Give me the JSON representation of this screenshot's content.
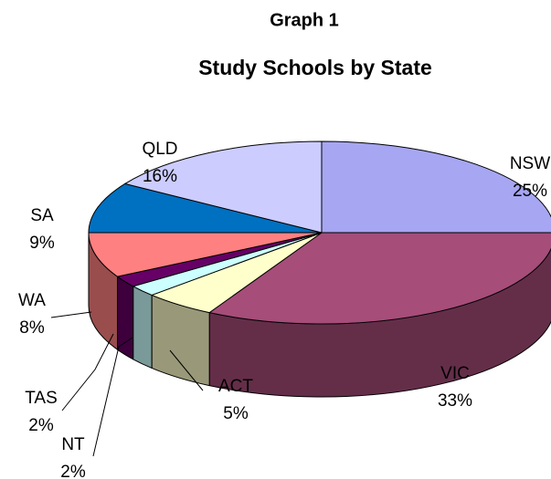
{
  "chart_data": {
    "type": "pie3d",
    "title": "Graph 1",
    "subtitle": "Study Schools by State",
    "categories": [
      "NSW",
      "VIC",
      "ACT",
      "NT",
      "TAS",
      "WA",
      "SA",
      "QLD"
    ],
    "values": [
      25,
      33,
      5,
      2,
      2,
      8,
      9,
      16
    ],
    "value_labels": [
      "25%",
      "33%",
      "5%",
      "2%",
      "2%",
      "8%",
      "9%",
      "16%"
    ],
    "colors": [
      "#a6a6f2",
      "#a64d79",
      "#ffffcc",
      "#ccffff",
      "#660066",
      "#ff8080",
      "#0070c0",
      "#ccccff"
    ]
  }
}
